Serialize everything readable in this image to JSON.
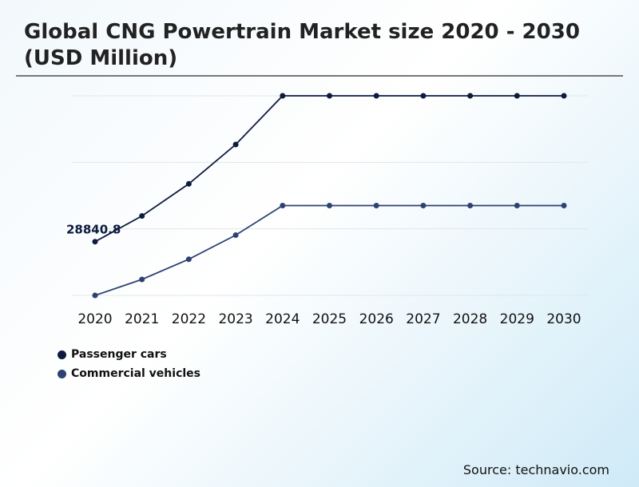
{
  "chart_data": {
    "type": "line",
    "title": "Global CNG Powertrain Market size 2020 - 2030 (USD Million)",
    "xlabel": "",
    "ylabel": "",
    "x": [
      "2020",
      "2021",
      "2022",
      "2023",
      "2024",
      "2025",
      "2026",
      "2027",
      "2028",
      "2029",
      "2030"
    ],
    "series": [
      {
        "name": "Passenger cars",
        "color": "#0d1b3e",
        "values": [
          28840.8,
          42636,
          59862,
          80987,
          107128,
          107128,
          107128,
          107128,
          107128,
          107128,
          107128
        ]
      },
      {
        "name": "Commercial vehicles",
        "color": "#2e4272",
        "values": [
          0,
          8570,
          19411,
          32352,
          48206,
          48206,
          48206,
          48206,
          48206,
          48206,
          48206
        ]
      }
    ],
    "data_labels": [
      {
        "series": 0,
        "index": 0,
        "text": "28840.8"
      }
    ],
    "ylim": [
      0,
      107128
    ],
    "grid": true,
    "y_tick_labels_shown": false,
    "legend_position": "bottom-left"
  },
  "source": "Source: technavio.com"
}
